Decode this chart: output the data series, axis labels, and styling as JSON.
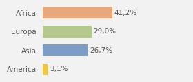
{
  "categories": [
    "Africa",
    "Europa",
    "Asia",
    "America"
  ],
  "values": [
    41.2,
    29.0,
    26.7,
    3.1
  ],
  "labels": [
    "41,2%",
    "29,0%",
    "26,7%",
    "3,1%"
  ],
  "bar_colors": [
    "#e8a87c",
    "#b5c98e",
    "#7b9ec7",
    "#f0c840"
  ],
  "background_color": "#f2f2f2",
  "xlim": [
    0,
    75
  ],
  "label_fontsize": 7.5,
  "tick_fontsize": 7.5
}
